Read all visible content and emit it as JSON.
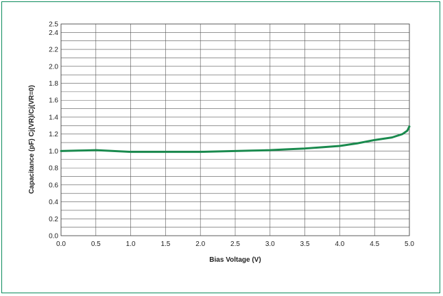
{
  "chart_data": {
    "type": "line",
    "title": "",
    "xlabel": "Bias Voltage (V)",
    "ylabel": "Capacitance (pF)   Cj(VR)/Cj(VR=0)",
    "xlim": [
      0.0,
      5.0
    ],
    "ylim": [
      0.0,
      2.5
    ],
    "xticks": [
      "0.0",
      "0.5",
      "1.0",
      "1.5",
      "2.0",
      "2.5",
      "3.0",
      "3.5",
      "4.0",
      "4.5",
      "5.0"
    ],
    "yticks": [
      "0.0",
      "0.2",
      "0.4",
      "0.6",
      "0.8",
      "1.0",
      "1.2",
      "1.4",
      "1.6",
      "1.8",
      "2.0",
      "2.2",
      "2.4",
      "2.5"
    ],
    "grid": true,
    "series": [
      {
        "color": "#1a8a4e",
        "x": [
          0.0,
          0.25,
          0.5,
          0.75,
          1.0,
          1.25,
          1.5,
          1.75,
          2.0,
          2.25,
          2.5,
          2.75,
          3.0,
          3.25,
          3.5,
          3.75,
          4.0,
          4.25,
          4.5,
          4.75,
          4.9,
          4.97,
          5.0
        ],
        "y": [
          1.0,
          1.005,
          1.01,
          1.0,
          0.99,
          0.99,
          0.99,
          0.99,
          0.99,
          0.995,
          1.0,
          1.005,
          1.01,
          1.02,
          1.03,
          1.045,
          1.06,
          1.09,
          1.13,
          1.16,
          1.2,
          1.24,
          1.29
        ]
      }
    ]
  }
}
